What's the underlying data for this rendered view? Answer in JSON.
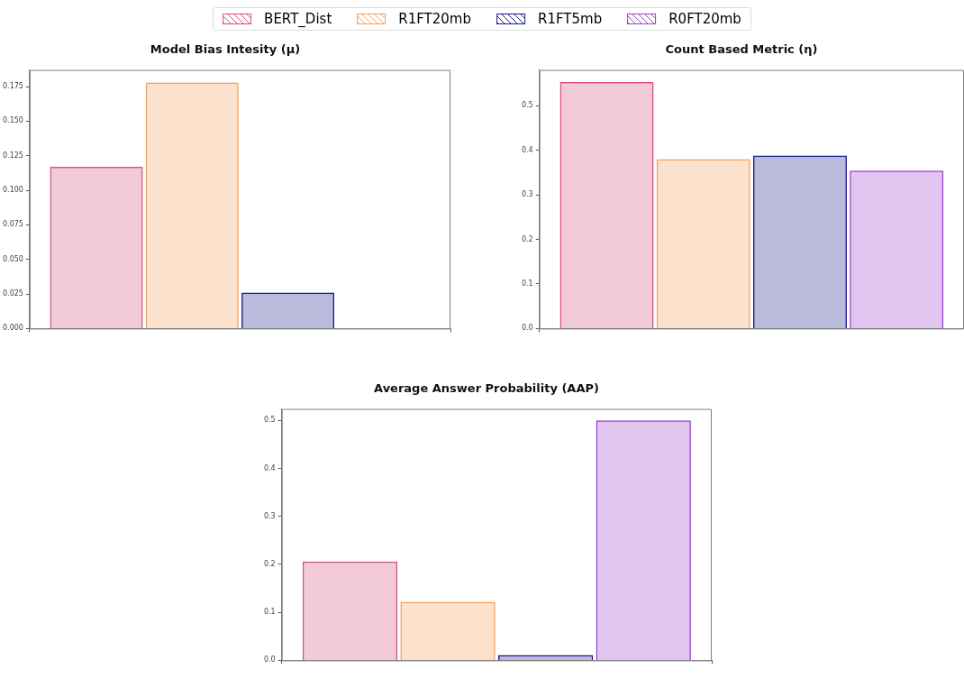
{
  "chart_data": [
    {
      "type": "bar",
      "title": "Model Bias Intesity (μ)",
      "categories": [
        null
      ],
      "legend": "top",
      "grid": false,
      "ylim": [
        0,
        0.187
      ],
      "yticks": [
        {
          "value": 0,
          "label": "0.000"
        },
        {
          "value": 0.025,
          "label": "0.025"
        },
        {
          "value": 0.05,
          "label": "0.050"
        },
        {
          "value": 0.075,
          "label": "0.075"
        },
        {
          "value": 0.1,
          "label": "0.100"
        },
        {
          "value": 0.125,
          "label": "0.125"
        },
        {
          "value": 0.15,
          "label": "0.150"
        },
        {
          "value": 0.175,
          "label": "0.175"
        }
      ],
      "series": [
        {
          "name": "BERT_Dist",
          "color": "#d6507a",
          "values": [
            0.117
          ]
        },
        {
          "name": "R1FT20mb",
          "color": "#f5a05a",
          "values": [
            0.178
          ]
        },
        {
          "name": "R1FT5mb",
          "color": "#1a1a8c",
          "values": [
            0.026
          ]
        },
        {
          "name": "R0FT20mb",
          "color": "#9a3fd0",
          "values": [
            null
          ]
        }
      ]
    },
    {
      "type": "bar",
      "title": "Count Based Metric (η)",
      "categories": [
        null
      ],
      "grid": false,
      "ylim": [
        0,
        0.58
      ],
      "yticks": [
        {
          "value": 0,
          "label": "0.0"
        },
        {
          "value": 0.1,
          "label": "0.1"
        },
        {
          "value": 0.2,
          "label": "0.2"
        },
        {
          "value": 0.3,
          "label": "0.3"
        },
        {
          "value": 0.4,
          "label": "0.4"
        },
        {
          "value": 0.5,
          "label": "0.5"
        }
      ],
      "series": [
        {
          "color": "#d6507a",
          "values": [
            0.553
          ]
        },
        {
          "color": "#f5a05a",
          "values": [
            0.38
          ]
        },
        {
          "color": "#1a1a8c",
          "values": [
            0.388
          ]
        },
        {
          "color": "#9a3fd0",
          "values": [
            0.354
          ]
        }
      ]
    },
    {
      "type": "bar",
      "title": "Average Answer Probability (AAP)",
      "categories": [
        null
      ],
      "grid": false,
      "ylim": [
        0,
        0.524
      ],
      "yticks": [
        {
          "value": 0,
          "label": "0.0"
        },
        {
          "value": 0.1,
          "label": "0.1"
        },
        {
          "value": 0.2,
          "label": "0.2"
        },
        {
          "value": 0.3,
          "label": "0.3"
        },
        {
          "value": 0.4,
          "label": "0.4"
        },
        {
          "value": 0.5,
          "label": "0.5"
        }
      ],
      "series": [
        {
          "color": "#d6507a",
          "values": [
            0.206
          ]
        },
        {
          "color": "#f5a05a",
          "values": [
            0.122
          ]
        },
        {
          "color": "#1a1a8c",
          "values": [
            0.011
          ]
        },
        {
          "color": "#9a3fd0",
          "values": [
            0.5
          ]
        }
      ]
    }
  ]
}
